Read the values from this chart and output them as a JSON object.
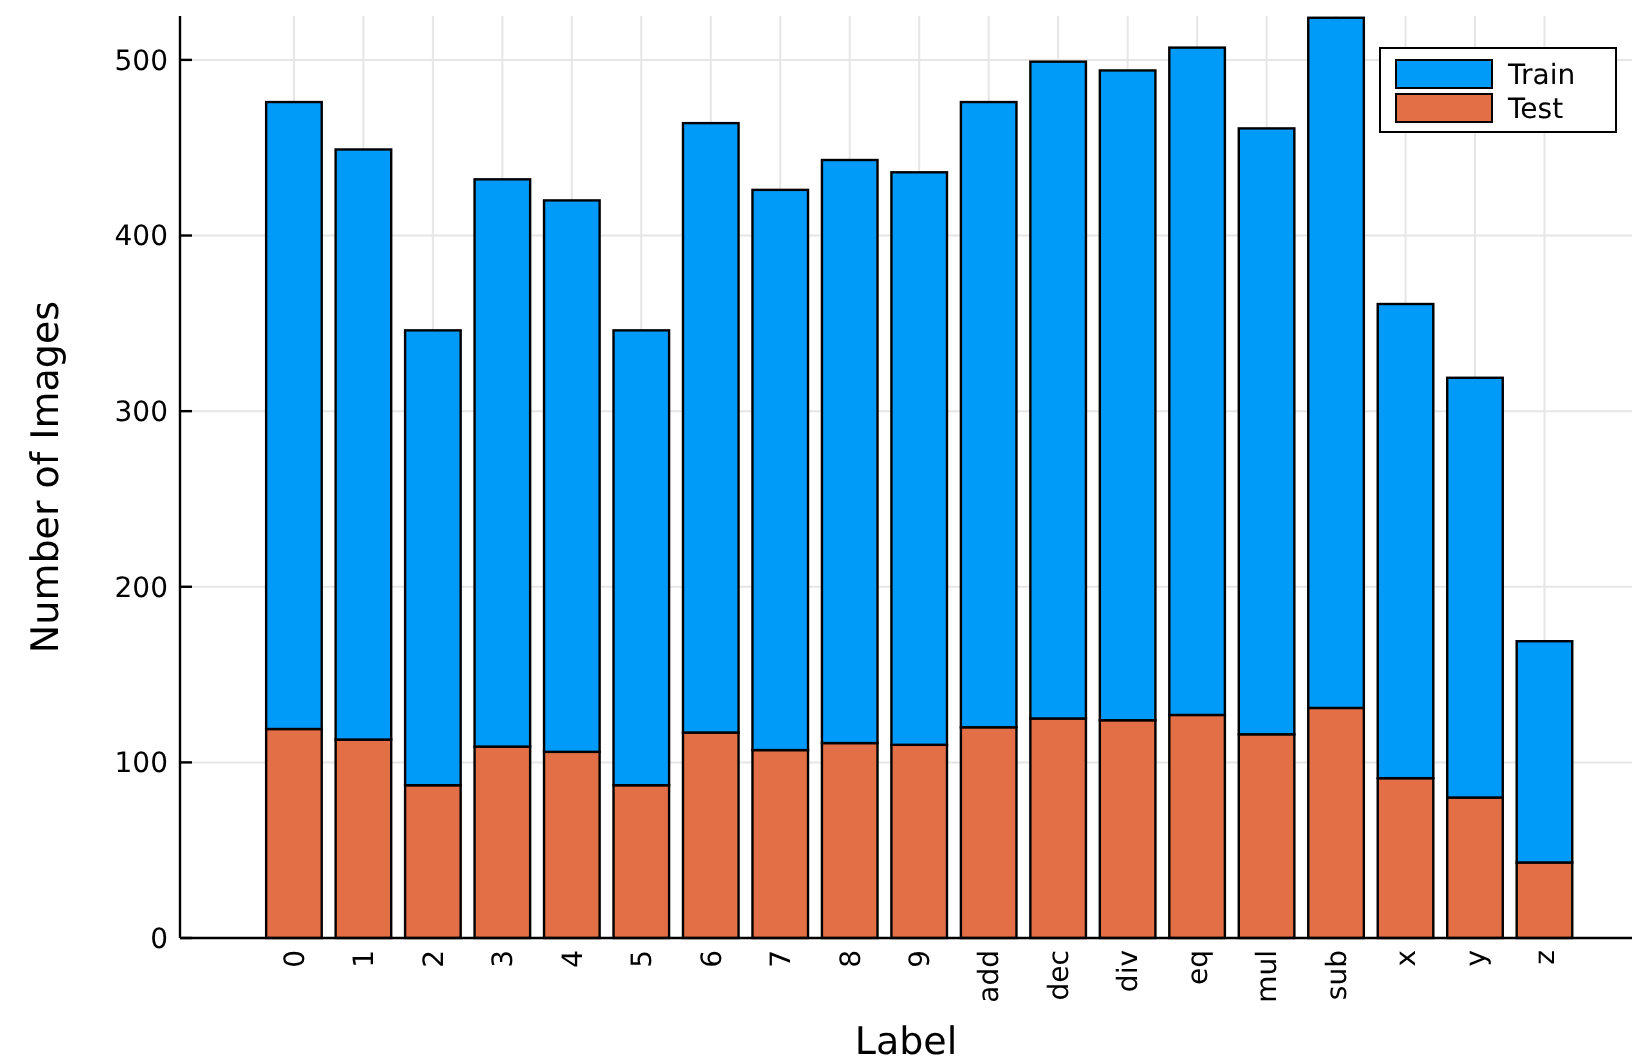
{
  "chart_data": {
    "type": "bar",
    "xlabel": "Label",
    "ylabel": "Number of Images",
    "categories": [
      "0",
      "1",
      "2",
      "3",
      "4",
      "5",
      "6",
      "7",
      "8",
      "9",
      "add",
      "dec",
      "div",
      "eq",
      "mul",
      "sub",
      "x",
      "y",
      "z"
    ],
    "series": [
      {
        "name": "Test",
        "color": "#e26f46",
        "values": [
          119,
          113,
          87,
          109,
          106,
          87,
          117,
          107,
          111,
          110,
          120,
          125,
          124,
          127,
          116,
          131,
          91,
          80,
          43
        ]
      },
      {
        "name": "Train",
        "color": "#009af9",
        "values": [
          357,
          336,
          259,
          323,
          314,
          259,
          347,
          319,
          332,
          326,
          356,
          374,
          370,
          380,
          345,
          393,
          270,
          239,
          126
        ]
      }
    ],
    "stacked": true,
    "ylim": [
      0,
      525
    ],
    "yticks": [
      0,
      100,
      200,
      300,
      400,
      500
    ],
    "grid": true,
    "legend": "top right"
  }
}
